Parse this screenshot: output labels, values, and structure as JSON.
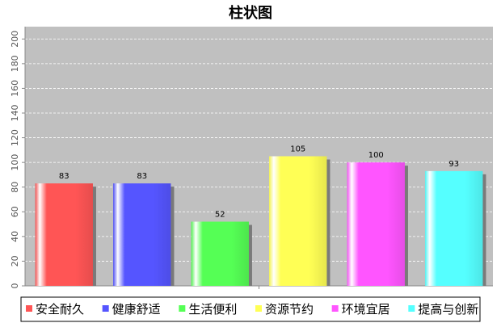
{
  "chart_data": {
    "type": "bar",
    "title": "柱状图",
    "categories": [
      "安全耐久",
      "健康舒适",
      "生活便利",
      "资源节约",
      "环境宜居",
      "提高与创新"
    ],
    "values": [
      83,
      83,
      52,
      105,
      100,
      93
    ],
    "colors": [
      "#ff5555",
      "#5555ff",
      "#55ff55",
      "#ffff55",
      "#ff55ff",
      "#55ffff"
    ],
    "ylim": [
      0,
      210
    ],
    "yticks": [
      0,
      20,
      40,
      60,
      80,
      100,
      120,
      140,
      160,
      180,
      200
    ],
    "grid": true,
    "legend_position": "bottom",
    "plot_background": "#c0c0c0"
  }
}
